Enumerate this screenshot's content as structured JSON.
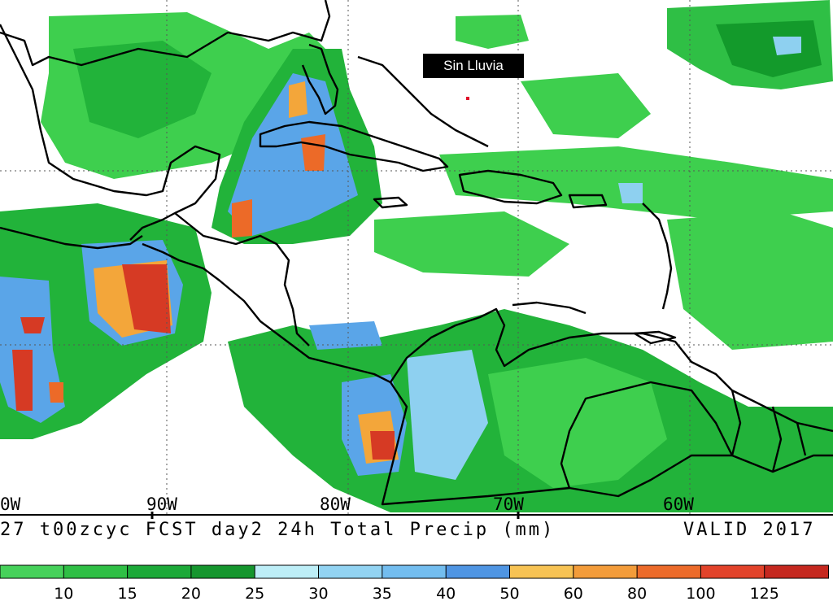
{
  "map": {
    "no_rain_label": "Sin Lluvia",
    "longitude_labels": [
      "0W",
      "90W",
      "80W",
      "70W",
      "60W"
    ],
    "caption": {
      "left": "27 t00zcyc FCST day2 24h Total Precip (mm)",
      "right": "VALID 2017"
    },
    "colors": {
      "land_line": "#000000",
      "grid_line": "#555555",
      "rain_light": "#3ecf4e",
      "rain_medium": "#22b33a",
      "rain_dark": "#139a2b",
      "rain_cyan": "#b8ecf5",
      "rain_lightblue": "#8ed0f0",
      "rain_blue": "#5aa5e8",
      "rain_deepblue": "#3c80dc",
      "rain_orange": "#f3a63a",
      "rain_redorange": "#ec6a28",
      "rain_red": "#d63a24",
      "rain_darkred": "#b81f1c"
    }
  },
  "legend": {
    "labels": [
      "10",
      "15",
      "20",
      "25",
      "30",
      "35",
      "40",
      "50",
      "60",
      "80",
      "100",
      "125"
    ],
    "colors": [
      "#46d15a",
      "#2fbf45",
      "#1ca938",
      "#15962e",
      "#bdeef7",
      "#92d3f2",
      "#73bdef",
      "#4f95e3",
      "#f7c354",
      "#f39c3a",
      "#ec6b2a",
      "#e2432a",
      "#c5281f"
    ]
  }
}
